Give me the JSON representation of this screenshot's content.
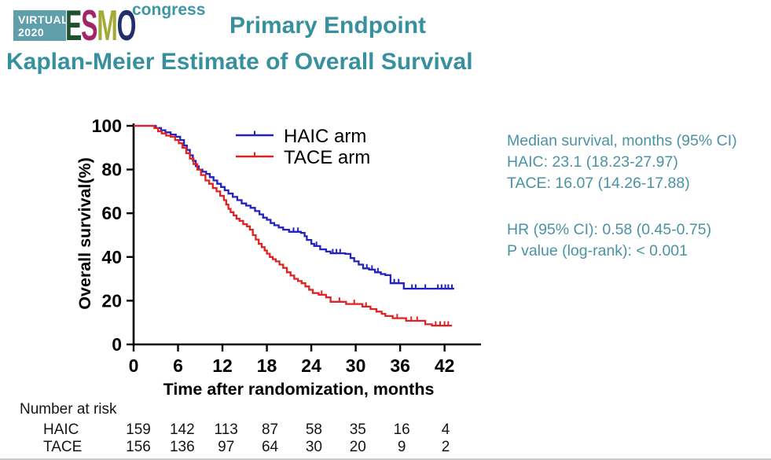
{
  "logo": {
    "virtual": "VIRTUAL",
    "year": "2020",
    "box_color": "#5f9fab",
    "letters": [
      {
        "char": "E",
        "color": "#1e5130"
      },
      {
        "char": "S",
        "color": "#a32565"
      },
      {
        "char": "M",
        "color": "#a2aa38"
      },
      {
        "char": "O",
        "color": "#232f6b"
      }
    ],
    "congress": "congress",
    "congress_color": "#3f96a5"
  },
  "header": {
    "title": "Primary Endpoint",
    "subtitle": "Kaplan-Meier Estimate of Overall Survival",
    "color": "#37909d"
  },
  "stats_panel": {
    "color": "#4b93a2",
    "lines": [
      "Median survival, months (95% CI)",
      "HAIC: 23.1 (18.23-27.97)",
      "TACE: 16.07 (14.26-17.88)",
      "",
      "HR (95% CI): 0.58 (0.45-0.75)",
      "P value (log-rank): < 0.001"
    ]
  },
  "chart_data": {
    "type": "line",
    "subtype": "kaplan-meier-step",
    "xlabel": "Time after randomization, months",
    "ylabel": "Overall survival(%)",
    "xlim": [
      0,
      44
    ],
    "ylim": [
      0,
      100
    ],
    "xticks": [
      0,
      6,
      12,
      18,
      24,
      30,
      36,
      42
    ],
    "yticks": [
      0,
      20,
      40,
      60,
      80,
      100
    ],
    "grid": false,
    "legend": {
      "position": "top-inside",
      "entries": [
        "HAIC arm",
        "TACE arm"
      ]
    },
    "series": [
      {
        "name": "HAIC arm",
        "color": "#2222c0",
        "median_months": 23.1,
        "points": [
          [
            0,
            100
          ],
          [
            2.3,
            100
          ],
          [
            3,
            99
          ],
          [
            3.7,
            98
          ],
          [
            4.3,
            97
          ],
          [
            5,
            96
          ],
          [
            5.7,
            95
          ],
          [
            6.3,
            93.5
          ],
          [
            6.8,
            91
          ],
          [
            7.2,
            89
          ],
          [
            7.6,
            86.5
          ],
          [
            8,
            84
          ],
          [
            8.4,
            81.5
          ],
          [
            8.8,
            80
          ],
          [
            9.3,
            79
          ],
          [
            9.8,
            78
          ],
          [
            10.3,
            76.5
          ],
          [
            10.8,
            75
          ],
          [
            11.3,
            73.5
          ],
          [
            11.8,
            72
          ],
          [
            12.3,
            70.5
          ],
          [
            12.8,
            69
          ],
          [
            13.4,
            67.5
          ],
          [
            14,
            66
          ],
          [
            14.6,
            64.5
          ],
          [
            15.2,
            63.5
          ],
          [
            15.8,
            62.5
          ],
          [
            16.4,
            61
          ],
          [
            17,
            59.5
          ],
          [
            17.5,
            58
          ],
          [
            18,
            57
          ],
          [
            18.5,
            55.5
          ],
          [
            19,
            54.5
          ],
          [
            19.6,
            53.5
          ],
          [
            20.2,
            52.5
          ],
          [
            21,
            51.5
          ],
          [
            22.6,
            51
          ],
          [
            23.1,
            49.5
          ],
          [
            23.4,
            47.8
          ],
          [
            24,
            46
          ],
          [
            24.4,
            45
          ],
          [
            25.2,
            43.5
          ],
          [
            26,
            42.5
          ],
          [
            26.6,
            41.7
          ],
          [
            28.6,
            41.4
          ],
          [
            29.3,
            39.5
          ],
          [
            29.8,
            38
          ],
          [
            30.4,
            36.5
          ],
          [
            31,
            34.8
          ],
          [
            31.8,
            34.2
          ],
          [
            32.6,
            33
          ],
          [
            33.4,
            32.2
          ],
          [
            34,
            31.7
          ],
          [
            34.7,
            28
          ],
          [
            36.5,
            25.5
          ],
          [
            43.3,
            25.5
          ]
        ],
        "censor_marks": [
          [
            21.6,
            51.5
          ],
          [
            22.2,
            51.5
          ],
          [
            24.7,
            45
          ],
          [
            26.9,
            41.7
          ],
          [
            27.4,
            41.7
          ],
          [
            27.9,
            41.7
          ],
          [
            31.5,
            34.8
          ],
          [
            32.2,
            34.2
          ],
          [
            33,
            33
          ],
          [
            35.2,
            28
          ],
          [
            35.8,
            28
          ],
          [
            37.6,
            25.5
          ],
          [
            38.1,
            25.5
          ],
          [
            39.4,
            25.5
          ],
          [
            41.1,
            25.5
          ],
          [
            41.6,
            25.5
          ],
          [
            42.1,
            25.5
          ],
          [
            42.5,
            25.5
          ],
          [
            43,
            25.5
          ]
        ]
      },
      {
        "name": "TACE arm",
        "color": "#e02222",
        "median_months": 16.07,
        "points": [
          [
            0,
            100
          ],
          [
            2.3,
            100
          ],
          [
            2.8,
            99
          ],
          [
            3.3,
            97.5
          ],
          [
            3.8,
            96.5
          ],
          [
            4.4,
            95.5
          ],
          [
            5,
            95
          ],
          [
            5.6,
            93.5
          ],
          [
            6.1,
            92
          ],
          [
            6.6,
            90
          ],
          [
            7.1,
            87.5
          ],
          [
            7.6,
            85
          ],
          [
            8.1,
            82.5
          ],
          [
            8.6,
            80
          ],
          [
            9.1,
            77.5
          ],
          [
            9.7,
            75
          ],
          [
            10.2,
            73.5
          ],
          [
            10.7,
            71.5
          ],
          [
            11.2,
            70
          ],
          [
            11.7,
            68
          ],
          [
            12.2,
            66
          ],
          [
            12.5,
            64
          ],
          [
            12.8,
            62
          ],
          [
            13.1,
            60.5
          ],
          [
            13.5,
            59
          ],
          [
            13.9,
            57.5
          ],
          [
            14.3,
            56.5
          ],
          [
            14.8,
            55
          ],
          [
            15.3,
            54
          ],
          [
            15.7,
            52.5
          ],
          [
            16.1,
            50
          ],
          [
            16.5,
            48
          ],
          [
            16.9,
            46
          ],
          [
            17.3,
            44.5
          ],
          [
            17.7,
            43
          ],
          [
            18,
            41.5
          ],
          [
            18.4,
            40
          ],
          [
            18.8,
            39
          ],
          [
            19.2,
            38
          ],
          [
            19.7,
            36.5
          ],
          [
            20.2,
            35
          ],
          [
            20.7,
            33
          ],
          [
            21.2,
            31.5
          ],
          [
            21.7,
            30
          ],
          [
            22.2,
            29
          ],
          [
            22.7,
            28
          ],
          [
            23.2,
            26.5
          ],
          [
            23.7,
            25
          ],
          [
            24.2,
            23.5
          ],
          [
            25,
            22.7
          ],
          [
            26,
            21.5
          ],
          [
            26.6,
            19.5
          ],
          [
            28.7,
            18.5
          ],
          [
            30.9,
            17.3
          ],
          [
            32,
            16.2
          ],
          [
            32.8,
            15
          ],
          [
            33.5,
            14
          ],
          [
            34,
            13
          ],
          [
            35,
            12
          ],
          [
            36.8,
            10.8
          ],
          [
            39.4,
            9.2
          ],
          [
            40.3,
            8.6
          ],
          [
            43,
            8.6
          ]
        ],
        "censor_marks": [
          [
            25.4,
            22.7
          ],
          [
            27.8,
            19.5
          ],
          [
            29.8,
            18.5
          ],
          [
            31.4,
            17.3
          ],
          [
            35.6,
            12
          ],
          [
            37.5,
            10.8
          ],
          [
            38.3,
            10.8
          ],
          [
            40.8,
            8.6
          ],
          [
            41.4,
            8.6
          ],
          [
            42,
            8.6
          ],
          [
            42.5,
            8.6
          ]
        ]
      }
    ],
    "number_at_risk": {
      "label": "Number at risk",
      "timepoints": [
        0,
        6,
        12,
        18,
        24,
        30,
        36,
        42
      ],
      "rows": [
        {
          "name": "HAIC",
          "values": [
            159,
            142,
            113,
            87,
            58,
            35,
            16,
            4
          ]
        },
        {
          "name": "TACE",
          "values": [
            156,
            136,
            97,
            64,
            30,
            20,
            9,
            2
          ]
        }
      ]
    }
  }
}
